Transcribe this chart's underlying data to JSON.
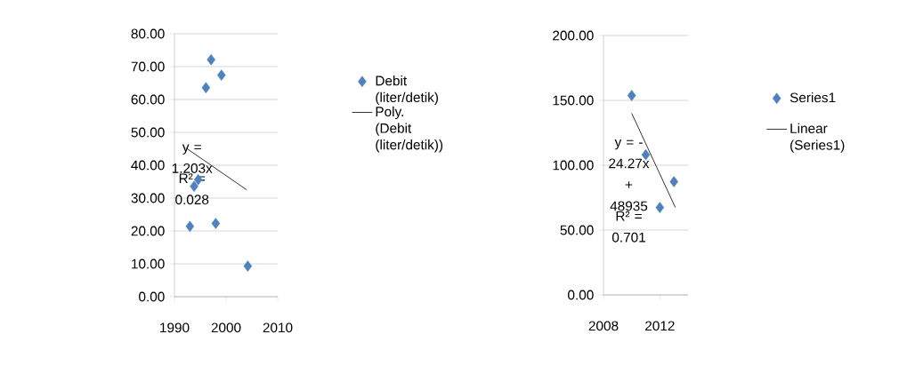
{
  "chart_data": [
    {
      "type": "scatter",
      "xlim": [
        1990,
        2010
      ],
      "xticks": [
        1990,
        2000,
        2010
      ],
      "ylim": [
        0,
        80
      ],
      "yticks": [
        {
          "value": 0,
          "label": "0.00"
        },
        {
          "value": 10,
          "label": "10.00"
        },
        {
          "value": 20,
          "label": "20.00"
        },
        {
          "value": 30,
          "label": "30.00"
        },
        {
          "value": 40,
          "label": "40.00"
        },
        {
          "value": 50,
          "label": "50.00"
        },
        {
          "value": 60,
          "label": "60.00"
        },
        {
          "value": 70,
          "label": "70.00"
        },
        {
          "value": 80,
          "label": "80.00"
        }
      ],
      "grid": "y",
      "legend": "right",
      "marker": "diamond",
      "series": [
        {
          "name": "Debit (liter/detik)",
          "color": "#4f81bd",
          "x": [
            1993.0,
            1993.8,
            1994.6,
            1996.1,
            1997.1,
            1999.1,
            1998.0,
            2004.2
          ],
          "values": [
            21.4,
            33.6,
            35.6,
            63.6,
            72.1,
            67.4,
            22.3,
            9.3
          ]
        },
        {
          "name": "Poly. (Debit (liter/detik))",
          "type": "line",
          "marker": "none",
          "color": "#000000",
          "x": [
            1992.2,
            2004.0
          ],
          "values": [
            45.3,
            32.5
          ]
        }
      ],
      "annotations": [
        "y = 1.203x",
        "R² = 0.028"
      ]
    },
    {
      "type": "scatter",
      "xlim": [
        2008,
        2014
      ],
      "xticks": [
        2008,
        2012
      ],
      "ylim": [
        0,
        200
      ],
      "yticks": [
        {
          "value": 0,
          "label": "0.00"
        },
        {
          "value": 50,
          "label": "50.00"
        },
        {
          "value": 100,
          "label": "100.00"
        },
        {
          "value": 150,
          "label": "150.00"
        },
        {
          "value": 200,
          "label": "200.00"
        }
      ],
      "grid": "y",
      "legend": "right",
      "marker": "diamond",
      "series": [
        {
          "name": "Series1",
          "color": "#4f81bd",
          "x": [
            2010.0,
            2011.0,
            2012.0,
            2013.0
          ],
          "values": [
            153.8,
            108.1,
            67.4,
            87.3
          ]
        },
        {
          "name": "Linear (Series1)",
          "type": "line",
          "marker": "none",
          "color": "#000000",
          "x": [
            2010.0,
            2013.1
          ],
          "values": [
            140.1,
            67.4
          ]
        }
      ],
      "annotations": [
        "y = -24.27x + 48935",
        "R² = 0.701"
      ]
    }
  ]
}
